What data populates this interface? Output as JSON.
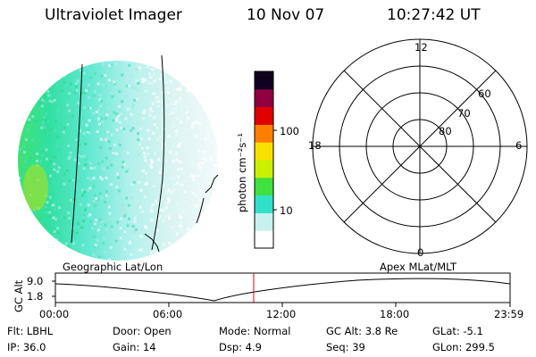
{
  "header": {
    "instrument": "Ultraviolet Imager",
    "date": "10 Nov 07",
    "time": "10:27:42 UT"
  },
  "colorbar": {
    "unit_label": "photon cm⁻²s⁻¹",
    "ticks": [
      "100",
      "10"
    ],
    "colors": [
      "#ffffff",
      "#c8f0f0",
      "#30e0c8",
      "#40e040",
      "#c8f000",
      "#f8e000",
      "#ff8000",
      "#e00000",
      "#900040",
      "#100020"
    ]
  },
  "polar_plot": {
    "mlt_labels": {
      "top": "12",
      "left": "18",
      "right": "6",
      "bottom": "0"
    },
    "lat_labels": [
      "60",
      "70",
      "80"
    ]
  },
  "timeline": {
    "left_label": "Geographic Lat/Lon",
    "right_label": "Apex  MLat/MLT",
    "y_axis_label": "GC Alt",
    "y_ticks": [
      "9.0",
      "1.8"
    ],
    "x_ticks": [
      "00:00",
      "06:00",
      "12:00",
      "18:00",
      "23:59"
    ],
    "marker_color": "#e00000"
  },
  "info": {
    "flt": "Flt: LBHL",
    "ip": "IP: 36.0",
    "door": "Door: Open",
    "gain": "Gain: 14",
    "mode": "Mode: Normal",
    "dsp": "Dsp:     4.9",
    "gcalt": "GC Alt: 3.8 Re",
    "seq": "Seq: 39",
    "glat": "GLat:   -5.1",
    "glon": "GLon: 299.5"
  }
}
